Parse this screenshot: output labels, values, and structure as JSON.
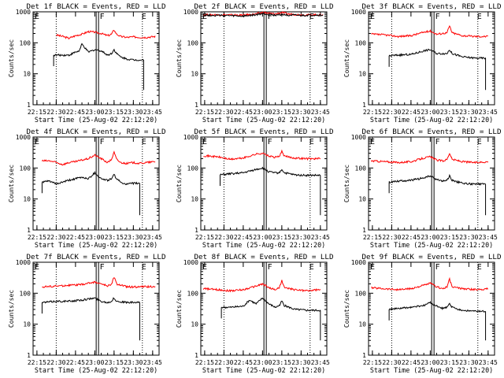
{
  "figure": {
    "marker_labels": [
      "F",
      "E"
    ]
  },
  "chart_data": [
    {
      "type": "line",
      "title": "Det 1f BLACK = Events, RED = LLD",
      "xlabel": "Start Time (25-Aug-02 22:12:20)",
      "ylabel": "Counts/sec",
      "yscale": "log",
      "ylim": [
        1,
        1000
      ],
      "xticks": [
        "22:15",
        "22:30",
        "22:45",
        "23:00",
        "23:15",
        "23:30",
        "23:45"
      ],
      "yticks": [
        "1",
        "10",
        "100",
        "1000"
      ],
      "series": [
        {
          "color": "#ff0000",
          "x": [
            "22:30",
            "22:35",
            "22:40",
            "22:45",
            "22:50",
            "22:55",
            "23:00",
            "23:05",
            "23:10",
            "23:13",
            "23:15",
            "23:17",
            "23:20",
            "23:25",
            "23:30",
            "23:35",
            "23:40",
            "23:47"
          ],
          "values": [
            180,
            160,
            140,
            170,
            190,
            230,
            220,
            200,
            170,
            190,
            260,
            190,
            160,
            150,
            155,
            150,
            150,
            160
          ]
        },
        {
          "color": "#000000",
          "x": [
            "22:28",
            "22:35",
            "22:40",
            "22:45",
            "22:48",
            "22:50",
            "22:55",
            "23:00",
            "23:05",
            "23:10",
            "23:13",
            "23:15",
            "23:17",
            "23:20",
            "23:25",
            "23:30",
            "23:35",
            "23:38"
          ],
          "values": [
            40,
            40,
            40,
            50,
            55,
            90,
            50,
            60,
            55,
            40,
            45,
            60,
            45,
            35,
            30,
            28,
            28,
            28
          ]
        }
      ]
    },
    {
      "type": "line",
      "title": "Det 2f BLACK = Events, RED = LLD",
      "xlabel": "Start Time (25-Aug-02 22:12:20)",
      "ylabel": "Counts/sec",
      "yscale": "log",
      "ylim": [
        1,
        1000
      ],
      "xticks": [
        "22:15",
        "22:30",
        "22:45",
        "23:00",
        "23:15",
        "23:30",
        "23:45"
      ],
      "yticks": [
        "1",
        "10",
        "100",
        "1000"
      ],
      "series": [
        {
          "color": "#ff0000",
          "x": [
            "22:14",
            "22:30",
            "22:45",
            "22:55",
            "23:00",
            "23:05",
            "23:10",
            "23:15",
            "23:20",
            "23:30",
            "23:40",
            "23:47"
          ],
          "values": [
            800,
            800,
            780,
            850,
            950,
            900,
            850,
            950,
            850,
            800,
            800,
            800
          ]
        },
        {
          "color": "#000000",
          "x": [
            "22:14",
            "22:30",
            "22:45",
            "22:55",
            "23:00",
            "23:05",
            "23:10",
            "23:15",
            "23:20",
            "23:30",
            "23:40",
            "23:47"
          ],
          "values": [
            780,
            760,
            720,
            800,
            880,
            820,
            780,
            820,
            780,
            760,
            780,
            780
          ]
        }
      ]
    },
    {
      "type": "line",
      "title": "Det 3f BLACK = Events, RED = LLD",
      "xlabel": "Start Time (25-Aug-02 22:12:20)",
      "ylabel": "Counts/sec",
      "yscale": "log",
      "ylim": [
        1,
        1000
      ],
      "xticks": [
        "22:15",
        "22:30",
        "22:45",
        "23:00",
        "23:15",
        "23:30",
        "23:45"
      ],
      "yticks": [
        "1",
        "10",
        "100",
        "1000"
      ],
      "series": [
        {
          "color": "#ff0000",
          "x": [
            "22:14",
            "22:25",
            "22:35",
            "22:45",
            "22:55",
            "23:00",
            "23:05",
            "23:13",
            "23:15",
            "23:17",
            "23:25",
            "23:35",
            "23:45"
          ],
          "values": [
            190,
            180,
            160,
            170,
            220,
            240,
            190,
            210,
            350,
            210,
            170,
            160,
            160
          ]
        },
        {
          "color": "#000000",
          "x": [
            "22:28",
            "22:35",
            "22:45",
            "22:50",
            "22:55",
            "23:00",
            "23:05",
            "23:13",
            "23:15",
            "23:17",
            "23:25",
            "23:35",
            "23:43"
          ],
          "values": [
            38,
            40,
            42,
            48,
            55,
            60,
            45,
            45,
            60,
            45,
            35,
            32,
            32
          ]
        }
      ]
    },
    {
      "type": "line",
      "title": "Det 4f BLACK = Events, RED = LLD",
      "xlabel": "Start Time (25-Aug-02 22:12:20)",
      "ylabel": "Counts/sec",
      "yscale": "log",
      "ylim": [
        1,
        1000
      ],
      "xticks": [
        "22:15",
        "22:30",
        "22:45",
        "23:00",
        "23:15",
        "23:30",
        "23:45"
      ],
      "yticks": [
        "1",
        "10",
        "100",
        "1000"
      ],
      "series": [
        {
          "color": "#ff0000",
          "x": [
            "22:19",
            "22:25",
            "22:30",
            "22:35",
            "22:40",
            "22:45",
            "22:50",
            "22:55",
            "23:00",
            "23:05",
            "23:10",
            "23:13",
            "23:15",
            "23:17",
            "23:20",
            "23:25",
            "23:30",
            "23:35",
            "23:40",
            "23:47"
          ],
          "values": [
            170,
            170,
            150,
            130,
            150,
            160,
            180,
            200,
            260,
            200,
            150,
            190,
            320,
            190,
            150,
            140,
            150,
            140,
            150,
            160
          ]
        },
        {
          "color": "#000000",
          "x": [
            "22:19",
            "22:25",
            "22:30",
            "22:35",
            "22:40",
            "22:45",
            "22:50",
            "22:55",
            "23:00",
            "23:05",
            "23:10",
            "23:13",
            "23:15",
            "23:17",
            "23:20",
            "23:25",
            "23:30",
            "23:35"
          ],
          "values": [
            35,
            38,
            30,
            35,
            40,
            45,
            50,
            45,
            70,
            45,
            40,
            45,
            60,
            45,
            35,
            30,
            32,
            32
          ]
        }
      ]
    },
    {
      "type": "line",
      "title": "Det 5f BLACK = Events, RED = LLD",
      "xlabel": "Start Time (25-Aug-02 22:12:20)",
      "ylabel": "Counts/sec",
      "yscale": "log",
      "ylim": [
        1,
        1000
      ],
      "xticks": [
        "22:15",
        "22:30",
        "22:45",
        "23:00",
        "23:15",
        "23:30",
        "23:45"
      ],
      "yticks": [
        "1",
        "10",
        "100",
        "1000"
      ],
      "series": [
        {
          "color": "#ff0000",
          "x": [
            "22:14",
            "22:25",
            "22:35",
            "22:45",
            "22:55",
            "23:00",
            "23:05",
            "23:10",
            "23:13",
            "23:15",
            "23:17",
            "23:25",
            "23:35",
            "23:45"
          ],
          "values": [
            250,
            230,
            190,
            210,
            280,
            300,
            240,
            220,
            240,
            340,
            240,
            210,
            200,
            200
          ]
        },
        {
          "color": "#000000",
          "x": [
            "22:27",
            "22:35",
            "22:45",
            "22:55",
            "23:00",
            "23:05",
            "23:10",
            "23:13",
            "23:15",
            "23:17",
            "23:25",
            "23:35",
            "23:45"
          ],
          "values": [
            60,
            65,
            70,
            90,
            100,
            75,
            70,
            70,
            90,
            70,
            60,
            58,
            58
          ]
        }
      ]
    },
    {
      "type": "line",
      "title": "Det 6f BLACK = Events, RED = LLD",
      "xlabel": "Start Time (25-Aug-02 22:12:20)",
      "ylabel": "Counts/sec",
      "yscale": "log",
      "ylim": [
        1,
        1000
      ],
      "xticks": [
        "22:15",
        "22:30",
        "22:45",
        "23:00",
        "23:15",
        "23:30",
        "23:45"
      ],
      "yticks": [
        "1",
        "10",
        "100",
        "1000"
      ],
      "series": [
        {
          "color": "#ff0000",
          "x": [
            "22:14",
            "22:25",
            "22:35",
            "22:45",
            "22:55",
            "23:00",
            "23:05",
            "23:10",
            "23:13",
            "23:15",
            "23:17",
            "23:25",
            "23:35",
            "23:45"
          ],
          "values": [
            170,
            160,
            150,
            160,
            210,
            230,
            180,
            170,
            190,
            300,
            190,
            160,
            150,
            160
          ]
        },
        {
          "color": "#000000",
          "x": [
            "22:28",
            "22:35",
            "22:45",
            "22:55",
            "23:00",
            "23:05",
            "23:10",
            "23:13",
            "23:15",
            "23:17",
            "23:25",
            "23:35",
            "23:43"
          ],
          "values": [
            35,
            38,
            40,
            48,
            55,
            42,
            38,
            40,
            55,
            40,
            32,
            30,
            30
          ]
        }
      ]
    },
    {
      "type": "line",
      "title": "Det 7f BLACK = Events, RED = LLD",
      "xlabel": "Start Time (25-Aug-02 22:12:20)",
      "ylabel": "Counts/sec",
      "yscale": "log",
      "ylim": [
        1,
        1000
      ],
      "xticks": [
        "22:15",
        "22:30",
        "22:45",
        "23:00",
        "23:15",
        "23:30",
        "23:45"
      ],
      "yticks": [
        "1",
        "10",
        "100",
        "1000"
      ],
      "series": [
        {
          "color": "#ff0000",
          "x": [
            "22:19",
            "22:30",
            "22:40",
            "22:50",
            "22:55",
            "23:00",
            "23:05",
            "23:10",
            "23:13",
            "23:15",
            "23:17",
            "23:25",
            "23:35",
            "23:47"
          ],
          "values": [
            160,
            170,
            180,
            190,
            210,
            230,
            200,
            170,
            200,
            330,
            200,
            160,
            160,
            165
          ]
        },
        {
          "color": "#000000",
          "x": [
            "22:19",
            "22:30",
            "22:40",
            "22:50",
            "22:55",
            "23:00",
            "23:05",
            "23:10",
            "23:13",
            "23:15",
            "23:17",
            "23:25",
            "23:35"
          ],
          "values": [
            50,
            55,
            55,
            60,
            65,
            70,
            55,
            50,
            55,
            70,
            55,
            50,
            50
          ]
        }
      ]
    },
    {
      "type": "line",
      "title": "Det 8f BLACK = Events, RED = LLD",
      "xlabel": "Start Time (25-Aug-02 22:12:20)",
      "ylabel": "Counts/sec",
      "yscale": "log",
      "ylim": [
        1,
        1000
      ],
      "xticks": [
        "22:15",
        "22:30",
        "22:45",
        "23:00",
        "23:15",
        "23:30",
        "23:45"
      ],
      "yticks": [
        "1",
        "10",
        "100",
        "1000"
      ],
      "series": [
        {
          "color": "#ff0000",
          "x": [
            "22:14",
            "22:25",
            "22:35",
            "22:45",
            "22:55",
            "23:00",
            "23:05",
            "23:10",
            "23:13",
            "23:15",
            "23:17",
            "23:25",
            "23:35",
            "23:45"
          ],
          "values": [
            140,
            130,
            120,
            130,
            170,
            200,
            150,
            130,
            150,
            260,
            150,
            130,
            120,
            130
          ]
        },
        {
          "color": "#000000",
          "x": [
            "22:28",
            "22:35",
            "22:45",
            "22:50",
            "22:55",
            "23:00",
            "23:05",
            "23:10",
            "23:13",
            "23:15",
            "23:17",
            "23:25",
            "23:35",
            "23:45"
          ],
          "values": [
            35,
            35,
            38,
            60,
            45,
            70,
            45,
            35,
            40,
            55,
            40,
            30,
            28,
            28
          ]
        }
      ]
    },
    {
      "type": "line",
      "title": "Det 9f BLACK = Events, RED = LLD",
      "xlabel": "Start Time (25-Aug-02 22:12:20)",
      "ylabel": "Counts/sec",
      "yscale": "log",
      "ylim": [
        1,
        1000
      ],
      "xticks": [
        "22:15",
        "22:30",
        "22:45",
        "23:00",
        "23:15",
        "23:30",
        "23:45"
      ],
      "yticks": [
        "1",
        "10",
        "100",
        "1000"
      ],
      "series": [
        {
          "color": "#ff0000",
          "x": [
            "22:14",
            "22:25",
            "22:35",
            "22:45",
            "22:55",
            "23:00",
            "23:05",
            "23:10",
            "23:13",
            "23:15",
            "23:17",
            "23:25",
            "23:35",
            "23:45"
          ],
          "values": [
            150,
            140,
            130,
            140,
            180,
            210,
            160,
            140,
            160,
            280,
            160,
            140,
            130,
            140
          ]
        },
        {
          "color": "#000000",
          "x": [
            "22:28",
            "22:35",
            "22:45",
            "22:55",
            "23:00",
            "23:05",
            "23:10",
            "23:13",
            "23:15",
            "23:17",
            "23:25",
            "23:35",
            "23:43"
          ],
          "values": [
            30,
            32,
            35,
            40,
            50,
            38,
            32,
            35,
            45,
            35,
            28,
            26,
            26
          ]
        }
      ]
    }
  ]
}
